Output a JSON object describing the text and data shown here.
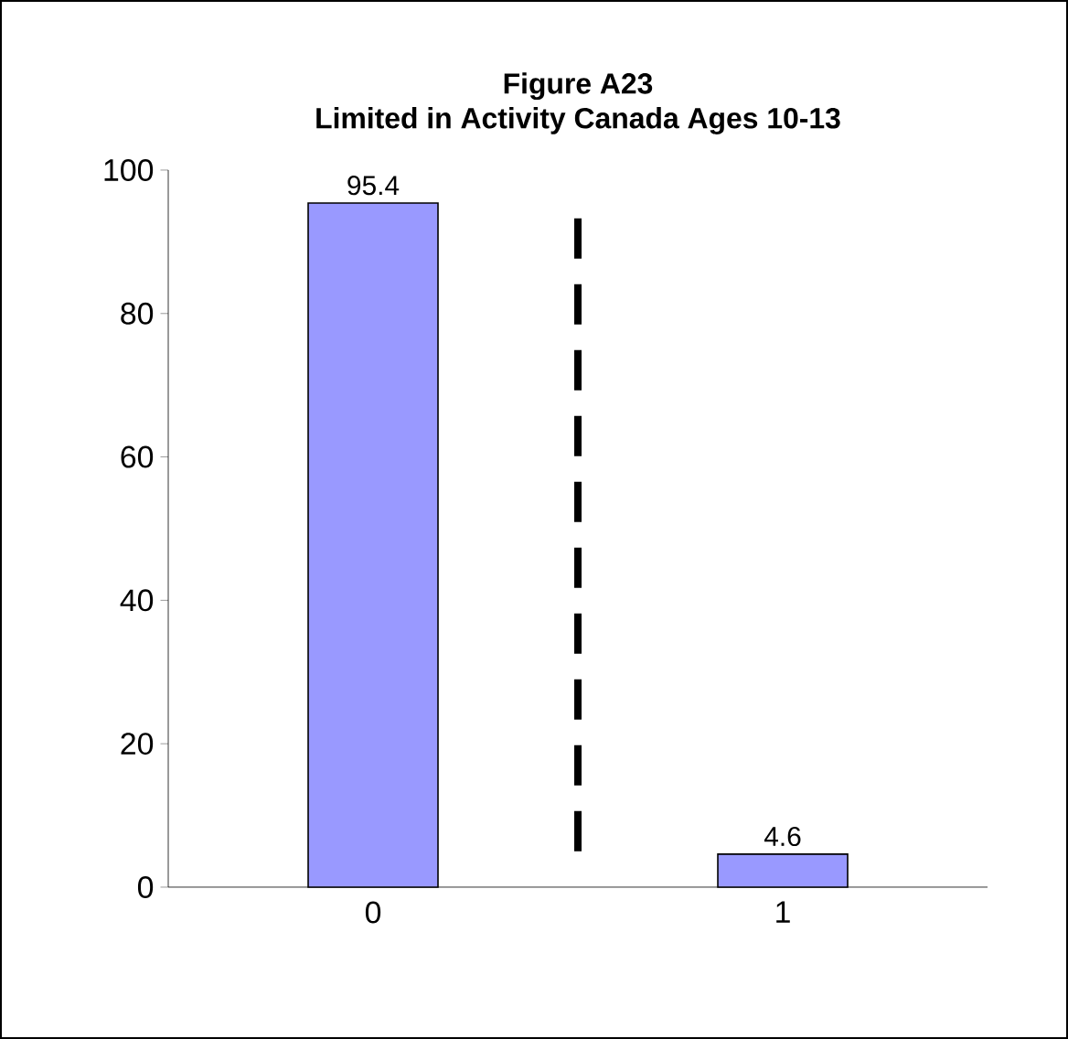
{
  "chart_data": {
    "type": "bar",
    "title": "Figure A23\nLimited in Activity Canada Ages 10-13",
    "categories": [
      "0",
      "1"
    ],
    "values": [
      95.4,
      4.6
    ],
    "color": "#9999ff",
    "ylim": [
      0,
      100
    ],
    "yticks": [
      0,
      20,
      40,
      60,
      80,
      100
    ],
    "data_labels": true
  }
}
